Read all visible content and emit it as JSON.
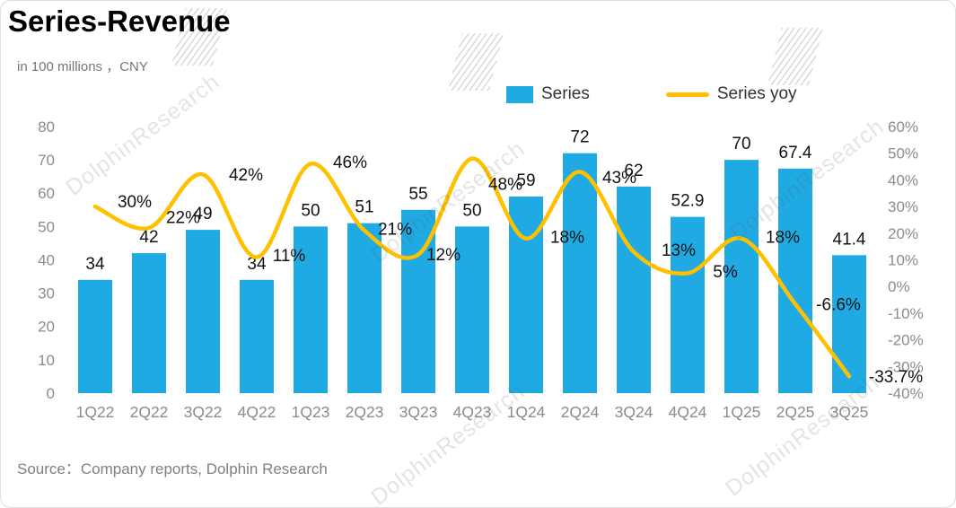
{
  "header": {
    "title": "Series-Revenue",
    "subtitle": "in 100 millions ，CNY"
  },
  "legend": [
    {
      "label": "Series"
    },
    {
      "label": "Series yoy"
    }
  ],
  "source": "Source：Company reports, Dolphin Research",
  "watermark": {
    "text": "DolphinResearch"
  },
  "colors": {
    "bar": "#20AAE4",
    "line": "#FFC000",
    "axis_text": "#8C8C8C",
    "category_text": "#8C8C8C",
    "data_label": "#111111"
  },
  "chart_data": {
    "type": "combo (bar + smooth line)",
    "title": "Series-Revenue",
    "subtitle": "in 100 millions ，CNY",
    "categories": [
      "1Q22",
      "2Q22",
      "3Q22",
      "4Q22",
      "1Q23",
      "2Q23",
      "3Q23",
      "4Q23",
      "1Q24",
      "2Q24",
      "3Q24",
      "4Q24",
      "1Q25",
      "2Q25",
      "3Q25"
    ],
    "series": [
      {
        "name": "Series",
        "type": "bar",
        "axis": "left",
        "values": [
          34,
          42,
          49,
          34,
          50,
          51,
          55,
          50,
          59,
          72,
          62,
          52.9,
          70,
          67.4,
          41.4
        ],
        "labels": [
          "34",
          "42",
          "49",
          "34",
          "50",
          "51",
          "55",
          "50",
          "59",
          "72",
          "62",
          "52.9",
          "70",
          "67.4",
          "41.4"
        ]
      },
      {
        "name": "Series yoy",
        "type": "line",
        "axis": "right",
        "values": [
          30,
          22,
          42,
          11,
          46,
          21,
          12,
          48,
          18,
          43,
          13,
          5,
          18,
          -6.6,
          -33.7
        ],
        "labels": [
          "30%",
          "22%",
          "42%",
          "11%",
          "46%",
          "21%",
          "12%",
          "48%",
          "18%",
          "43%",
          "13%",
          "5%",
          "18%",
          "-6.6%",
          "-33.7%"
        ]
      }
    ],
    "left_axis": {
      "min": 0,
      "max": 80,
      "step": 10
    },
    "right_axis": {
      "min": -40,
      "max": 60,
      "step": 10,
      "suffix": "%"
    },
    "grid": false,
    "legend_position": "top"
  }
}
